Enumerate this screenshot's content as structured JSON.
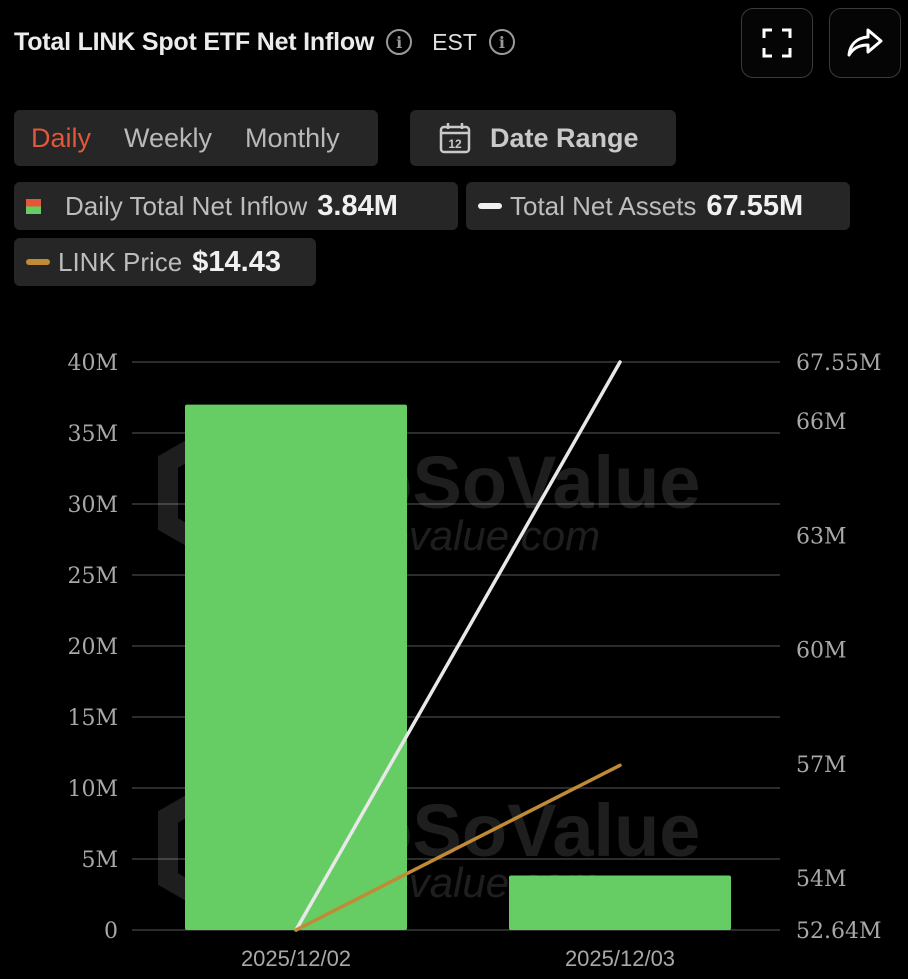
{
  "header": {
    "title": "Total LINK Spot ETF Net Inflow",
    "timezone": "EST",
    "info_icon": "info-icon",
    "fullscreen_icon": "fullscreen-icon",
    "share_icon": "share-icon"
  },
  "period_tabs": [
    {
      "label": "Daily",
      "active": true
    },
    {
      "label": "Weekly",
      "active": false
    },
    {
      "label": "Monthly",
      "active": false
    }
  ],
  "date_range": {
    "label": "Date Range",
    "icon": "calendar-icon",
    "icon_text": "12"
  },
  "legend": {
    "inflow": {
      "label": "Daily Total Net Inflow",
      "value": "3.84M"
    },
    "assets": {
      "label": "Total Net Assets",
      "value": "67.55M"
    },
    "price": {
      "label": "LINK Price",
      "value": "$14.43"
    }
  },
  "colors": {
    "accent": "#e2573a",
    "bar": "#66cd64",
    "assets_line": "#e8e8e8",
    "price_line": "#c18a36",
    "grid": "#3a3a3a",
    "axis_text": "#a8a8a8"
  },
  "watermark": {
    "brand": "SoSoValue",
    "url": "sosovalue.com"
  },
  "chart_data": {
    "type": "bar",
    "categories": [
      "2025/12/02",
      "2025/12/03"
    ],
    "series": [
      {
        "name": "Daily Total Net Inflow",
        "type": "bar",
        "axis": "left",
        "values": [
          37000000,
          3840000
        ]
      },
      {
        "name": "Total Net Assets",
        "type": "line",
        "axis": "right",
        "values": [
          52640000,
          67550000
        ]
      },
      {
        "name": "LINK Price",
        "type": "line",
        "axis": "none",
        "values": [
          null,
          14.43
        ]
      }
    ],
    "price_line_fraction_of_left_axis": [
      0,
      0.29
    ],
    "left_axis": {
      "ylim": [
        0,
        40000000
      ],
      "ticks": [
        "0",
        "5M",
        "10M",
        "15M",
        "20M",
        "25M",
        "30M",
        "35M",
        "40M"
      ]
    },
    "right_axis": {
      "ylim": [
        52640000,
        67550000
      ],
      "ticks": [
        "52.64M",
        "54M",
        "57M",
        "60M",
        "63M",
        "66M",
        "67.55M"
      ],
      "tick_values": [
        52640000,
        54000000,
        57000000,
        60000000,
        63000000,
        66000000,
        67550000
      ]
    },
    "grid": true,
    "legend_placement": "top"
  }
}
